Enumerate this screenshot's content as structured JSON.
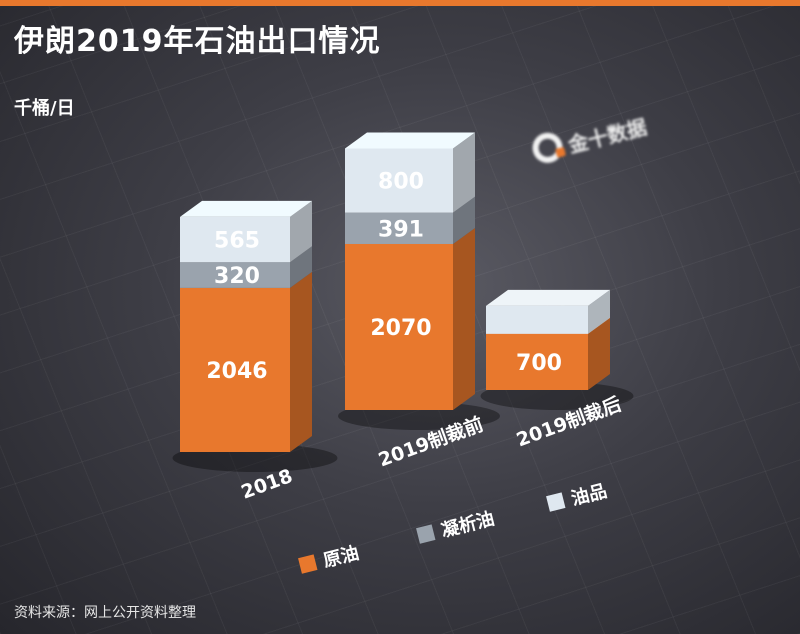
{
  "title": "伊朗2019年石油出口情况",
  "unit": "千桶/日",
  "brand": {
    "text": "金十数据"
  },
  "source": "资料来源：网上公开资料整理",
  "colors": {
    "accent": "#e8782d",
    "crude": "#e8782d",
    "condensate": "#9aa3ad",
    "products": "#dfe8f0"
  },
  "chart_data": {
    "type": "bar",
    "stacked": true,
    "unit": "千桶/日",
    "categories": [
      "2018",
      "2019制裁前",
      "2019制裁后"
    ],
    "series": [
      {
        "name": "原油",
        "values": [
          2046,
          2070,
          700
        ]
      },
      {
        "name": "凝析油",
        "values": [
          320,
          391,
          null
        ]
      },
      {
        "name": "油品",
        "values": [
          565,
          800,
          null
        ]
      }
    ]
  }
}
